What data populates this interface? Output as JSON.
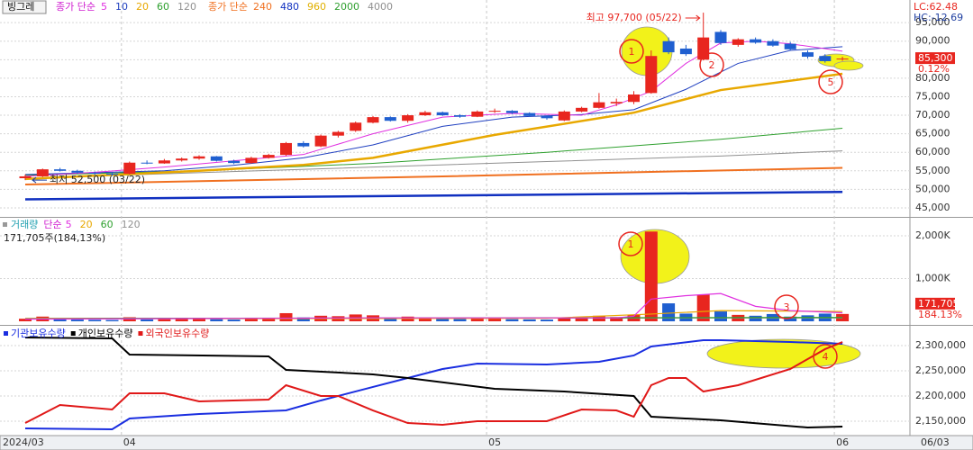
{
  "stock_name": "빙그레",
  "x_axis": {
    "start_label": "2024/03",
    "end_label": "06/03",
    "ticks": [
      {
        "value": 6,
        "label": "04"
      },
      {
        "value": 27,
        "label": "05"
      },
      {
        "value": 47,
        "label": "06"
      }
    ]
  },
  "chart_data": [
    {
      "type": "candlestick",
      "ylim": [
        42800,
        99900
      ],
      "yticks": [
        {
          "value": 95000,
          "label": "95,000"
        },
        {
          "value": 90000,
          "label": "90,000"
        },
        {
          "value": 85000,
          "label": "85,000"
        },
        {
          "value": 80000,
          "label": "80,000"
        },
        {
          "value": 75000,
          "label": "75,000"
        },
        {
          "value": 70000,
          "label": "70,000"
        },
        {
          "value": 65000,
          "label": "65,000"
        },
        {
          "value": 60000,
          "label": "60,000"
        },
        {
          "value": 55000,
          "label": "55,000"
        },
        {
          "value": 50000,
          "label": "50,000"
        },
        {
          "value": 45000,
          "label": "45,000"
        }
      ],
      "up_color": "#e8261f",
      "down_color": "#1f5fd0",
      "ohlc": [
        [
          53000,
          54000,
          52500,
          53500
        ],
        [
          53500,
          55600,
          53300,
          55400
        ],
        [
          55400,
          55800,
          54800,
          55000
        ],
        [
          55000,
          55300,
          54200,
          54500
        ],
        [
          54500,
          54800,
          53800,
          54200
        ],
        [
          54200,
          54500,
          53600,
          54000
        ],
        [
          54200,
          57500,
          54000,
          57200
        ],
        [
          57200,
          57800,
          56800,
          57000
        ],
        [
          57000,
          58200,
          56900,
          57800
        ],
        [
          57800,
          58600,
          57500,
          58300
        ],
        [
          58300,
          59200,
          58000,
          58900
        ],
        [
          58900,
          59000,
          57500,
          57700
        ],
        [
          57700,
          58000,
          56800,
          57100
        ],
        [
          57100,
          58800,
          56900,
          58500
        ],
        [
          58500,
          59600,
          58300,
          59300
        ],
        [
          59300,
          62800,
          59000,
          62500
        ],
        [
          62500,
          63000,
          61300,
          61600
        ],
        [
          61600,
          64800,
          61400,
          64500
        ],
        [
          64500,
          65800,
          64000,
          65500
        ],
        [
          65800,
          68300,
          65500,
          68000
        ],
        [
          68000,
          69800,
          67800,
          69500
        ],
        [
          69500,
          69700,
          68300,
          68500
        ],
        [
          68500,
          70300,
          68000,
          70000
        ],
        [
          70000,
          71200,
          69800,
          70800
        ],
        [
          70800,
          71000,
          69800,
          70000
        ],
        [
          70000,
          70300,
          69300,
          69600
        ],
        [
          69600,
          71300,
          69500,
          71000
        ],
        [
          71000,
          71800,
          70600,
          71200
        ],
        [
          71200,
          71400,
          70300,
          70600
        ],
        [
          70600,
          70800,
          69600,
          69800
        ],
        [
          69800,
          70000,
          68800,
          69200
        ],
        [
          68600,
          71300,
          68400,
          71000
        ],
        [
          71000,
          72300,
          70800,
          72000
        ],
        [
          72000,
          76000,
          71800,
          73500
        ],
        [
          73200,
          74500,
          72500,
          73600
        ],
        [
          73600,
          76500,
          73000,
          75600
        ],
        [
          76000,
          87500,
          75800,
          86000
        ],
        [
          90000,
          91000,
          86500,
          87000
        ],
        [
          88000,
          89000,
          86000,
          86500
        ],
        [
          85000,
          97700,
          84800,
          91000
        ],
        [
          92500,
          93000,
          89000,
          89500
        ],
        [
          89000,
          90800,
          88500,
          90500
        ],
        [
          90500,
          91000,
          89300,
          89600
        ],
        [
          90000,
          90500,
          88500,
          88800
        ],
        [
          89300,
          89800,
          87500,
          87800
        ],
        [
          87000,
          87500,
          85300,
          85800
        ],
        [
          86000,
          86500,
          84200,
          84600
        ],
        [
          85200,
          85800,
          84700,
          85300
        ]
      ],
      "ma_groups": [
        {
          "label": "종가 단순",
          "color": "#d020d0",
          "series": [
            {
              "name": "5",
              "color": "#e030e0",
              "width": 1,
              "x": [
                0,
                4,
                8,
                12,
                16,
                20,
                24,
                28,
                32,
                34,
                36,
                38,
                40,
                42,
                44,
                47
              ],
              "values": [
                53500,
                54600,
                56000,
                57700,
                59400,
                65000,
                69500,
                70500,
                70000,
                72800,
                76500,
                84000,
                89500,
                90000,
                89300,
                87300
              ]
            },
            {
              "name": "10",
              "color": "#2040c0",
              "width": 1,
              "x": [
                0,
                8,
                12,
                16,
                20,
                24,
                28,
                32,
                35,
                38,
                41,
                44,
                47
              ],
              "values": [
                54000,
                55000,
                56500,
                58500,
                62000,
                67000,
                69500,
                70200,
                71500,
                77000,
                84000,
                87500,
                88500
              ]
            },
            {
              "name": "20",
              "color": "#e8a800",
              "width": 2.5,
              "x": [
                0,
                10,
                16,
                20,
                27,
                35,
                40,
                47
              ],
              "values": [
                52800,
                55000,
                56600,
                58500,
                64700,
                70700,
                76800,
                81200
              ]
            },
            {
              "name": "60",
              "color": "#2ea02e",
              "width": 1,
              "x": [
                0,
                10,
                20,
                30,
                40,
                47
              ],
              "values": [
                53800,
                55000,
                57000,
                60000,
                63500,
                66500
              ]
            },
            {
              "name": "120",
              "color": "#909090",
              "width": 1,
              "x": [
                0,
                20,
                30,
                40,
                47
              ],
              "values": [
                53000,
                56000,
                57500,
                59000,
                60400
              ]
            }
          ]
        },
        {
          "label": "종가 단순",
          "color": "#f07020",
          "series": [
            {
              "name": "240",
              "color": "#f07020",
              "width": 2,
              "x": [
                0,
                24,
                47
              ],
              "values": [
                51300,
                53500,
                55800
              ]
            },
            {
              "name": "480",
              "color": "#1030c0",
              "width": 2.5,
              "x": [
                0,
                47
              ],
              "values": [
                47300,
                49300
              ]
            },
            {
              "name": "960",
              "color": "#e0b000"
            },
            {
              "name": "2000",
              "color": "#30a030"
            },
            {
              "name": "4000",
              "color": "#909090"
            }
          ]
        }
      ],
      "high_note": "최고 97,700 (05/22)",
      "low_note": "최저 52,500 (03/22)",
      "close_label": "85,300",
      "change": "0.12%",
      "lc": "LC:62.48",
      "hc": "HC:-12.69",
      "annotations": [
        "1",
        "2",
        "5"
      ]
    },
    {
      "type": "bar",
      "title": "거래량",
      "ma_label": "단순",
      "ylim": [
        0,
        2400000
      ],
      "yticks": [
        {
          "value": 2000000,
          "label": "2,000K"
        },
        {
          "value": 1000000,
          "label": "1,000K"
        }
      ],
      "values": [
        60000,
        110000,
        45000,
        40000,
        35000,
        30000,
        95000,
        45000,
        50000,
        55000,
        60000,
        50000,
        40000,
        55000,
        70000,
        190000,
        90000,
        130000,
        120000,
        160000,
        140000,
        80000,
        110000,
        90000,
        60000,
        55000,
        80000,
        70000,
        50000,
        45000,
        40000,
        90000,
        70000,
        130000,
        100000,
        150000,
        2100000,
        420000,
        180000,
        620000,
        230000,
        150000,
        130000,
        170000,
        110000,
        140000,
        180000,
        171705
      ],
      "series": [
        {
          "name": "5",
          "color": "#e030e0",
          "x": [
            0,
            20,
            34,
            35,
            36,
            38,
            40,
            42,
            44,
            47
          ],
          "values": [
            50000,
            80000,
            80000,
            120000,
            520000,
            600000,
            650000,
            350000,
            250000,
            200000
          ]
        },
        {
          "name": "20",
          "color": "#e8a800",
          "x": [
            0,
            30,
            36,
            40,
            47
          ],
          "values": [
            60000,
            70000,
            170000,
            250000,
            230000
          ]
        },
        {
          "name": "60",
          "color": "#2ea02e",
          "x": [
            0,
            47
          ],
          "values": [
            65000,
            90000
          ]
        },
        {
          "name": "120",
          "color": "#909090",
          "x": [
            0,
            47
          ],
          "values": [
            70000,
            80000
          ]
        }
      ],
      "summary": "171,705주(184,13%)",
      "last_label": "171,705",
      "last_ratio": "184.13%",
      "annotations": [
        "1",
        "3"
      ]
    },
    {
      "type": "line",
      "ylim": [
        2123200,
        2333900
      ],
      "yticks": [
        {
          "value": 2300000,
          "label": "2,300,000"
        },
        {
          "value": 2250000,
          "label": "2,250,000"
        },
        {
          "value": 2200000,
          "label": "2,200,000"
        },
        {
          "value": 2150000,
          "label": "2,150,000"
        }
      ],
      "series": [
        {
          "name": "기관보유수량",
          "color": "#1a2ee0",
          "x": [
            0,
            5,
            6,
            10,
            15,
            17,
            20,
            22,
            24,
            26,
            30,
            33,
            35,
            36,
            39,
            40,
            44,
            47
          ],
          "values": [
            2135700,
            2133900,
            2155400,
            2164300,
            2171400,
            2191100,
            2217900,
            2235700,
            2253600,
            2264300,
            2262500,
            2267900,
            2280400,
            2298200,
            2310700,
            2310700,
            2307100,
            2303600
          ]
        },
        {
          "name": "개인보유수량",
          "color": "#000000",
          "x": [
            0,
            5,
            6,
            14,
            15,
            20,
            22,
            27,
            31,
            35,
            36,
            40,
            45,
            47
          ],
          "values": [
            2316100,
            2314300,
            2282100,
            2278600,
            2251800,
            2242900,
            2235700,
            2214300,
            2208900,
            2200000,
            2158900,
            2151800,
            2137500,
            2139300
          ]
        },
        {
          "name": "외국인보유수량",
          "color": "#e01818",
          "x": [
            0,
            1,
            2,
            5,
            6,
            8,
            10,
            14,
            15,
            17,
            18,
            20,
            22,
            24,
            26,
            30,
            32,
            34,
            35,
            36,
            37,
            38,
            39,
            41,
            44,
            46,
            47
          ],
          "values": [
            2146400,
            2164300,
            2182100,
            2173200,
            2205400,
            2205400,
            2189300,
            2192900,
            2221400,
            2200000,
            2200000,
            2171400,
            2146400,
            2142900,
            2150000,
            2150000,
            2173200,
            2171400,
            2158900,
            2221400,
            2235700,
            2235700,
            2208900,
            2221400,
            2253600,
            2292900,
            2307100
          ]
        }
      ],
      "annotations": [
        "4"
      ]
    }
  ]
}
